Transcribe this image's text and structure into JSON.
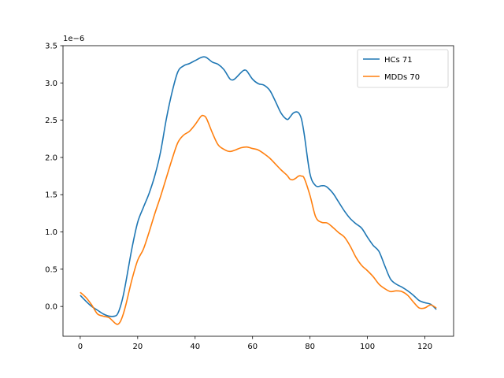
{
  "chart_data": {
    "type": "line",
    "title": "",
    "xlabel": "",
    "ylabel": "",
    "offset_label": "1e−6",
    "xlim": [
      -6,
      130
    ],
    "ylim": [
      -0.4,
      3.5
    ],
    "x_ticks": [
      0,
      20,
      40,
      60,
      80,
      100,
      120
    ],
    "y_ticks": [
      0.0,
      0.5,
      1.0,
      1.5,
      2.0,
      2.5,
      3.0,
      3.5
    ],
    "y_tick_labels": [
      "0.0",
      "0.5",
      "1.0",
      "1.5",
      "2.0",
      "2.5",
      "3.0",
      "3.5"
    ],
    "legend_position": "upper-right",
    "grid": false,
    "series": [
      {
        "name": "HCs 71",
        "color": "#1f77b4",
        "x": [
          0,
          2,
          4,
          6,
          8,
          10,
          12,
          13,
          14,
          15,
          16,
          18,
          20,
          22,
          24,
          26,
          28,
          30,
          32,
          34,
          36,
          38,
          40,
          42,
          43,
          44,
          46,
          48,
          50,
          52,
          53,
          54,
          56,
          57,
          58,
          60,
          62,
          64,
          66,
          68,
          70,
          72,
          73,
          74,
          75,
          76,
          77,
          78,
          80,
          82,
          84,
          85,
          86,
          88,
          90,
          92,
          94,
          96,
          98,
          100,
          102,
          104,
          106,
          108,
          110,
          112,
          114,
          116,
          118,
          120,
          122,
          124
        ],
        "y": [
          0.15,
          0.07,
          0.0,
          -0.05,
          -0.1,
          -0.13,
          -0.13,
          -0.1,
          0.0,
          0.15,
          0.35,
          0.78,
          1.13,
          1.33,
          1.52,
          1.76,
          2.08,
          2.52,
          2.88,
          3.15,
          3.23,
          3.26,
          3.3,
          3.34,
          3.35,
          3.34,
          3.28,
          3.25,
          3.18,
          3.06,
          3.04,
          3.06,
          3.14,
          3.17,
          3.16,
          3.05,
          2.99,
          2.97,
          2.9,
          2.75,
          2.59,
          2.51,
          2.54,
          2.59,
          2.61,
          2.6,
          2.52,
          2.31,
          1.78,
          1.62,
          1.62,
          1.62,
          1.6,
          1.52,
          1.4,
          1.28,
          1.18,
          1.11,
          1.05,
          0.93,
          0.82,
          0.74,
          0.55,
          0.37,
          0.3,
          0.26,
          0.21,
          0.15,
          0.08,
          0.05,
          0.03,
          -0.04
        ]
      },
      {
        "name": "MDDs 70",
        "color": "#ff7f0e",
        "x": [
          0,
          2,
          4,
          6,
          8,
          10,
          12,
          13,
          14,
          15,
          16,
          18,
          20,
          22,
          24,
          26,
          28,
          30,
          32,
          34,
          36,
          38,
          40,
          42,
          43,
          44,
          46,
          48,
          50,
          52,
          54,
          56,
          58,
          60,
          62,
          64,
          66,
          68,
          70,
          72,
          73,
          74,
          75,
          76,
          77,
          78,
          80,
          82,
          84,
          86,
          88,
          90,
          92,
          94,
          96,
          98,
          100,
          102,
          104,
          106,
          108,
          110,
          112,
          114,
          116,
          118,
          120,
          122,
          124
        ],
        "y": [
          0.19,
          0.12,
          0.02,
          -0.1,
          -0.13,
          -0.15,
          -0.22,
          -0.24,
          -0.2,
          -0.1,
          0.04,
          0.36,
          0.62,
          0.77,
          1.0,
          1.25,
          1.48,
          1.73,
          1.98,
          2.2,
          2.3,
          2.35,
          2.44,
          2.55,
          2.56,
          2.52,
          2.33,
          2.17,
          2.11,
          2.08,
          2.1,
          2.13,
          2.14,
          2.12,
          2.1,
          2.05,
          1.99,
          1.91,
          1.83,
          1.76,
          1.71,
          1.7,
          1.72,
          1.75,
          1.75,
          1.72,
          1.49,
          1.2,
          1.13,
          1.12,
          1.06,
          0.99,
          0.93,
          0.81,
          0.66,
          0.55,
          0.48,
          0.4,
          0.3,
          0.24,
          0.2,
          0.21,
          0.2,
          0.15,
          0.06,
          -0.02,
          -0.02,
          0.02,
          -0.02
        ]
      }
    ]
  }
}
